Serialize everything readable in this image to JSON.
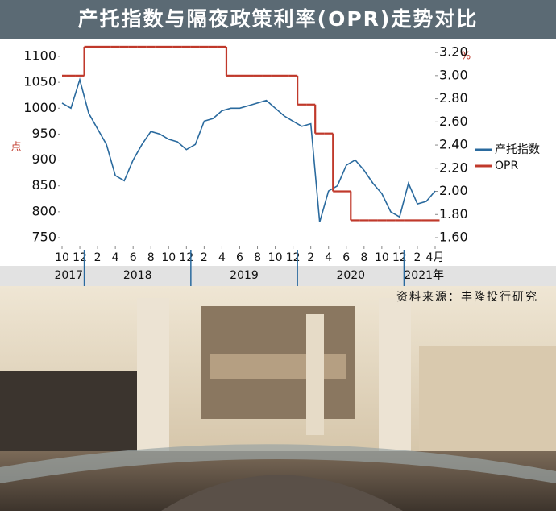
{
  "chart_data": {
    "type": "line",
    "title": "产托指数与隔夜政策利率(OPR)走势对比",
    "y_label": "点",
    "y2_label": "%",
    "source": "资料来源：丰隆投行研究",
    "x": [
      "2017-10",
      "2017-11",
      "2017-12",
      "2018-01",
      "2018-02",
      "2018-03",
      "2018-04",
      "2018-05",
      "2018-06",
      "2018-07",
      "2018-08",
      "2018-09",
      "2018-10",
      "2018-11",
      "2018-12",
      "2019-01",
      "2019-02",
      "2019-03",
      "2019-04",
      "2019-05",
      "2019-06",
      "2019-07",
      "2019-08",
      "2019-09",
      "2019-10",
      "2019-11",
      "2019-12",
      "2020-01",
      "2020-02",
      "2020-03",
      "2020-04",
      "2020-05",
      "2020-06",
      "2020-07",
      "2020-08",
      "2020-09",
      "2020-10",
      "2020-11",
      "2020-12",
      "2021-01",
      "2021-02",
      "2021-03",
      "2021-04"
    ],
    "xlim": [
      "2017-10",
      "2021-04"
    ],
    "xticks": [
      {
        "value": "2017-10",
        "label": "10"
      },
      {
        "value": "2017-12",
        "label": "12"
      },
      {
        "value": "2018-02",
        "label": "2"
      },
      {
        "value": "2018-04",
        "label": "4"
      },
      {
        "value": "2018-06",
        "label": "6"
      },
      {
        "value": "2018-08",
        "label": "8"
      },
      {
        "value": "2018-10",
        "label": "10"
      },
      {
        "value": "2018-12",
        "label": "12"
      },
      {
        "value": "2019-02",
        "label": "2"
      },
      {
        "value": "2019-04",
        "label": "4"
      },
      {
        "value": "2019-06",
        "label": "6"
      },
      {
        "value": "2019-08",
        "label": "8"
      },
      {
        "value": "2019-10",
        "label": "10"
      },
      {
        "value": "2019-12",
        "label": "12"
      },
      {
        "value": "2020-02",
        "label": "2"
      },
      {
        "value": "2020-04",
        "label": "4"
      },
      {
        "value": "2020-06",
        "label": "6"
      },
      {
        "value": "2020-08",
        "label": "8"
      },
      {
        "value": "2020-10",
        "label": "10"
      },
      {
        "value": "2020-12",
        "label": "12"
      },
      {
        "value": "2021-02",
        "label": "2"
      },
      {
        "value": "2021-04",
        "label": "4月"
      }
    ],
    "x_years": [
      {
        "value": "2017",
        "label": "2017"
      },
      {
        "value": "2018",
        "label": "2018"
      },
      {
        "value": "2019",
        "label": "2019"
      },
      {
        "value": "2020",
        "label": "2020"
      },
      {
        "value": "2021",
        "label": "2021年"
      }
    ],
    "ylim": [
      750,
      1100
    ],
    "yticks": [
      750,
      800,
      850,
      900,
      950,
      1000,
      1050,
      1100
    ],
    "y2lim": [
      1.6,
      3.34
    ],
    "y2ticks": [
      {
        "value": 1.6,
        "label": "1.60"
      },
      {
        "value": 1.8,
        "label": "1.80"
      },
      {
        "value": 2.0,
        "label": "2.00"
      },
      {
        "value": 2.2,
        "label": "2.20"
      },
      {
        "value": 2.4,
        "label": "2.40"
      },
      {
        "value": 2.6,
        "label": "2.60"
      },
      {
        "value": 2.8,
        "label": "2.80"
      },
      {
        "value": 3.0,
        "label": "3.00"
      },
      {
        "value": 3.2,
        "label": "3.20"
      }
    ],
    "series": [
      {
        "name": "产托指数",
        "color": "#2a6a9e",
        "values": [
          1010,
          1000,
          1055,
          990,
          960,
          930,
          870,
          860,
          900,
          930,
          955,
          950,
          940,
          935,
          920,
          930,
          975,
          980,
          995,
          1000,
          1000,
          1005,
          1010,
          1015,
          1000,
          985,
          975,
          965,
          970,
          780,
          840,
          850,
          890,
          900,
          880,
          855,
          835,
          800,
          790,
          855,
          815,
          820,
          840
        ]
      },
      {
        "name": "OPR",
        "color": "#c0392b",
        "axis": "y2",
        "step": true,
        "values": [
          3.0,
          3.0,
          3.0,
          3.25,
          3.25,
          3.25,
          3.25,
          3.25,
          3.25,
          3.25,
          3.25,
          3.25,
          3.25,
          3.25,
          3.25,
          3.25,
          3.25,
          3.25,
          3.25,
          3.0,
          3.0,
          3.0,
          3.0,
          3.0,
          3.0,
          3.0,
          3.0,
          2.75,
          2.75,
          2.5,
          2.5,
          2.0,
          2.0,
          1.75,
          1.75,
          1.75,
          1.75,
          1.75,
          1.75,
          1.75,
          1.75,
          1.75,
          1.75
        ]
      }
    ]
  }
}
